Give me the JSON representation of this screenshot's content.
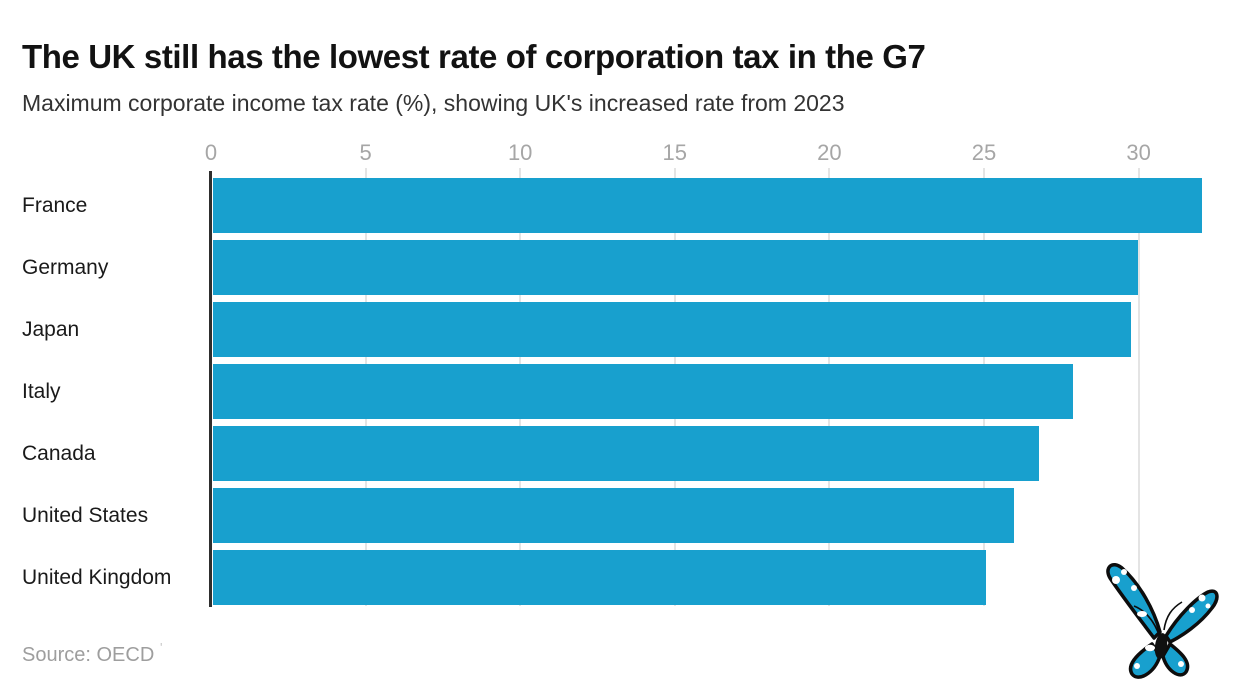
{
  "header": {
    "title": "The UK still has the lowest rate of corporation tax in the G7",
    "subtitle": "Maximum corporate income tax rate (%), showing UK's increased rate from 2023"
  },
  "chart_data": {
    "type": "bar",
    "orientation": "horizontal",
    "title": "The UK still has the lowest rate of corporation tax in the G7",
    "subtitle": "Maximum corporate income tax rate (%), showing UK's increased rate from 2023",
    "categories": [
      "France",
      "Germany",
      "Japan",
      "Italy",
      "Canada",
      "United States",
      "United Kingdom"
    ],
    "values": [
      32.0,
      29.9,
      29.7,
      27.8,
      26.7,
      25.9,
      25.0
    ],
    "xlabel": "",
    "ylabel": "",
    "x_ticks": [
      0,
      5,
      10,
      15,
      20,
      25,
      30
    ],
    "xlim": [
      0,
      33.2
    ],
    "grid": true,
    "legend": "none",
    "bar_color": "#18A0CE",
    "grid_color": "#e4e4e4",
    "axis_color": "#2e2e2e",
    "tick_label_color": "#a6a6a6"
  },
  "footer": {
    "source": "Source: OECD",
    "mark": "'"
  },
  "icons": {
    "logo": "butterfly-logo"
  }
}
